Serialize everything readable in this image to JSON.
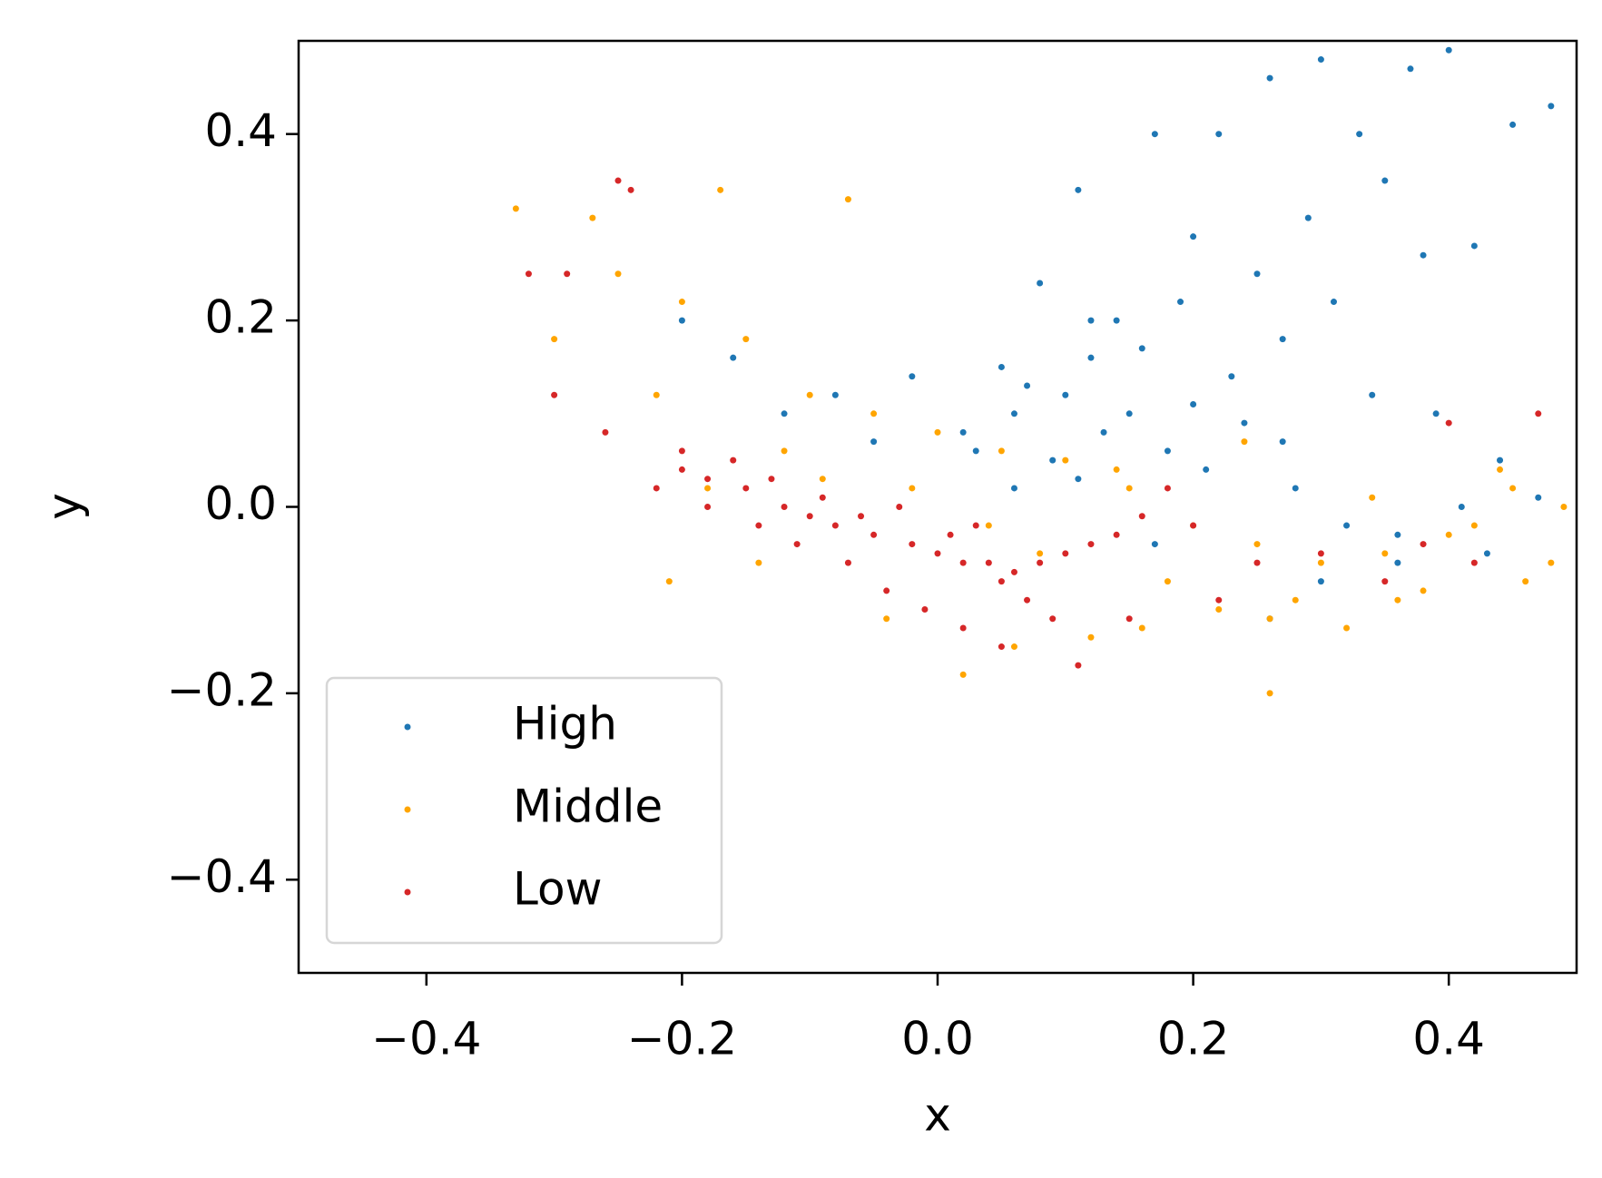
{
  "chart_data": {
    "type": "scatter",
    "x_label": "x",
    "y_label": "y",
    "xlim": [
      -0.5,
      0.5
    ],
    "ylim": [
      -0.5,
      0.5
    ],
    "xticks": [
      {
        "value": -0.4,
        "label": "−0.4"
      },
      {
        "value": -0.2,
        "label": "−0.2"
      },
      {
        "value": 0.0,
        "label": "0.0"
      },
      0.2,
      0.4
    ],
    "yticks": [
      {
        "value": -0.4,
        "label": "−0.4"
      },
      {
        "value": -0.2,
        "label": "−0.2"
      },
      {
        "value": 0.0,
        "label": "0.0"
      },
      0.2,
      0.4
    ],
    "grid": false,
    "legend": "lower left",
    "series": [
      {
        "name": "High",
        "color": "#1f77b4",
        "x": [
          0.26,
          0.3,
          0.4,
          0.37,
          0.48,
          0.45,
          0.33,
          0.22,
          0.17,
          0.11,
          0.29,
          0.35,
          0.42,
          0.2,
          0.25,
          0.31,
          0.38,
          0.14,
          0.08,
          0.05,
          0.12,
          0.16,
          0.19,
          0.23,
          0.27,
          0.34,
          0.39,
          0.44,
          0.1,
          0.02,
          -0.02,
          -0.08,
          -0.12,
          -0.16,
          -0.2,
          0.06,
          0.13,
          0.18,
          0.21,
          0.28,
          0.32,
          0.36,
          0.41,
          0.47,
          0.09,
          0.15,
          0.24,
          0.03,
          -0.05,
          0.07,
          0.11,
          0.17,
          0.26,
          0.3,
          0.36,
          0.43,
          0.12,
          0.2,
          0.27,
          0.06
        ],
        "values": [
          0.46,
          0.48,
          0.49,
          0.47,
          0.43,
          0.41,
          0.4,
          0.4,
          0.4,
          0.34,
          0.31,
          0.35,
          0.28,
          0.29,
          0.25,
          0.22,
          0.27,
          0.2,
          0.24,
          0.15,
          0.2,
          0.17,
          0.22,
          0.14,
          0.18,
          0.12,
          0.1,
          0.05,
          0.12,
          0.08,
          0.14,
          0.12,
          0.1,
          0.16,
          0.2,
          0.1,
          0.08,
          0.06,
          0.04,
          0.02,
          -0.02,
          -0.06,
          0.0,
          0.01,
          0.05,
          0.1,
          0.09,
          0.06,
          0.07,
          0.13,
          0.03,
          -0.04,
          -0.12,
          -0.08,
          -0.03,
          -0.05,
          0.16,
          0.11,
          0.07,
          0.02
        ]
      },
      {
        "name": "Middle",
        "color": "#ffa500",
        "x": [
          -0.33,
          -0.27,
          -0.17,
          -0.07,
          -0.25,
          -0.2,
          -0.15,
          -0.1,
          -0.05,
          0.0,
          0.05,
          0.1,
          0.15,
          0.2,
          0.25,
          0.3,
          0.35,
          0.4,
          0.45,
          0.49,
          -0.3,
          -0.22,
          -0.12,
          -0.02,
          0.08,
          0.18,
          0.28,
          0.38,
          0.48,
          -0.14,
          -0.04,
          0.06,
          0.16,
          0.26,
          0.36,
          0.46,
          -0.21,
          0.02,
          0.12,
          0.22,
          0.32,
          0.42,
          0.26,
          -0.09,
          0.04,
          0.14,
          0.24,
          0.34,
          0.44,
          -0.18
        ],
        "values": [
          0.32,
          0.31,
          0.34,
          0.33,
          0.25,
          0.22,
          0.18,
          0.12,
          0.1,
          0.08,
          0.06,
          0.05,
          0.02,
          -0.02,
          -0.04,
          -0.06,
          -0.05,
          -0.03,
          0.02,
          0.0,
          0.18,
          0.12,
          0.06,
          0.02,
          -0.05,
          -0.08,
          -0.1,
          -0.09,
          -0.06,
          -0.06,
          -0.12,
          -0.15,
          -0.13,
          -0.12,
          -0.1,
          -0.08,
          -0.08,
          -0.18,
          -0.14,
          -0.11,
          -0.13,
          -0.02,
          -0.2,
          0.03,
          -0.02,
          0.04,
          0.07,
          0.01,
          0.04,
          0.02
        ]
      },
      {
        "name": "Low",
        "color": "#d62728",
        "x": [
          -0.25,
          -0.24,
          -0.32,
          -0.29,
          -0.2,
          -0.22,
          -0.18,
          -0.15,
          -0.12,
          -0.1,
          -0.08,
          -0.05,
          -0.02,
          0.0,
          0.02,
          0.04,
          0.06,
          0.08,
          0.1,
          0.12,
          0.14,
          0.16,
          0.18,
          0.2,
          0.25,
          0.3,
          0.35,
          0.4,
          0.47,
          -0.2,
          -0.16,
          -0.13,
          -0.09,
          -0.06,
          -0.03,
          0.01,
          0.03,
          0.05,
          0.07,
          0.09,
          -0.18,
          -0.14,
          -0.11,
          -0.07,
          -0.04,
          -0.01,
          0.02,
          0.05,
          -0.3,
          -0.26,
          0.11,
          0.15,
          0.22,
          0.38,
          0.42
        ],
        "values": [
          0.35,
          0.34,
          0.25,
          0.25,
          0.06,
          0.02,
          0.03,
          0.02,
          0.0,
          -0.01,
          -0.02,
          -0.03,
          -0.04,
          -0.05,
          -0.06,
          -0.06,
          -0.07,
          -0.06,
          -0.05,
          -0.04,
          -0.03,
          -0.01,
          0.02,
          -0.02,
          -0.06,
          -0.05,
          -0.08,
          0.09,
          0.1,
          0.04,
          0.05,
          0.03,
          0.01,
          -0.01,
          0.0,
          -0.03,
          -0.02,
          -0.08,
          -0.1,
          -0.12,
          0.0,
          -0.02,
          -0.04,
          -0.06,
          -0.09,
          -0.11,
          -0.13,
          -0.15,
          0.12,
          0.08,
          -0.17,
          -0.12,
          -0.1,
          -0.04,
          -0.06
        ]
      }
    ]
  }
}
